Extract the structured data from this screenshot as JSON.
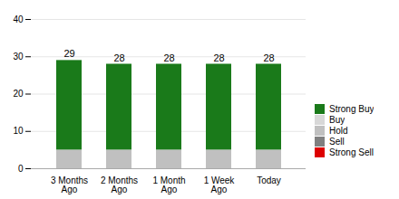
{
  "chart_data": {
    "type": "bar",
    "stacked": true,
    "categories": [
      "3 Months\nAgo",
      "2 Months\nAgo",
      "1 Month\nAgo",
      "1 Week\nAgo",
      "Today"
    ],
    "series": [
      {
        "name": "Strong Buy",
        "color": "#1a7a1a",
        "values": [
          24,
          23,
          23,
          23,
          23
        ]
      },
      {
        "name": "Buy",
        "color": "#d8d8d8",
        "values": [
          0,
          0,
          0,
          0,
          0
        ]
      },
      {
        "name": "Hold",
        "color": "#c0c0c0",
        "values": [
          5,
          5,
          5,
          5,
          5
        ]
      },
      {
        "name": "Sell",
        "color": "#808080",
        "values": [
          0,
          0,
          0,
          0,
          0
        ]
      },
      {
        "name": "Strong Sell",
        "color": "#dd0000",
        "values": [
          0,
          0,
          0,
          0,
          0
        ]
      }
    ],
    "totals": [
      29,
      28,
      28,
      28,
      28
    ],
    "ylim": [
      0,
      40
    ],
    "yticks": [
      0,
      10,
      20,
      30,
      40
    ],
    "grid": true,
    "legend": "right"
  }
}
